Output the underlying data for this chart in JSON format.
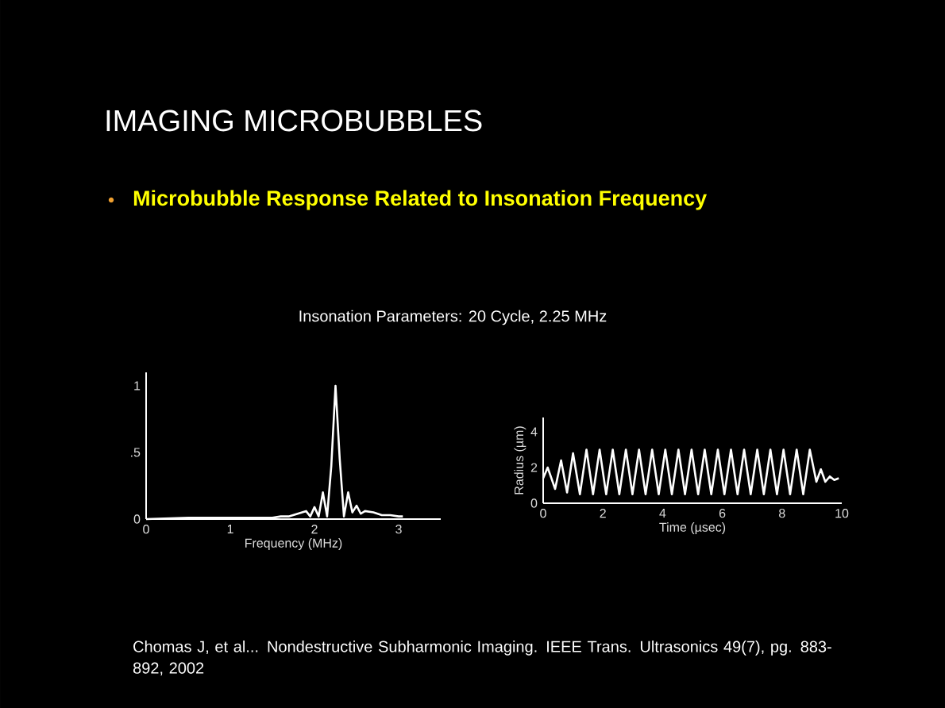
{
  "chart_data": [
    {
      "type": "line",
      "title": "IMAGING MICROBUBBLES",
      "subtitle": "Microbubble Response Related to Insonation Frequency",
      "annotations": [
        "Insonation Parameters: 20 Cycle, 2.25 MHz",
        "Chomas J, et al... Nondestructive Subharmonic Imaging. IEEE Trans. Ultrasonics 49(7), pg. 883-892, 2002"
      ],
      "xlabel": "Frequency (MHz)",
      "xlim": [
        0,
        3.5
      ],
      "ylim": [
        0,
        1.1
      ],
      "xticks": [
        0,
        1,
        2,
        3
      ],
      "yticks": [
        0,
        {
          "value": 0.5,
          "label": ".5"
        },
        1
      ],
      "x": [
        0,
        0.5,
        1,
        1.5,
        1.6,
        1.7,
        1.8,
        1.9,
        1.95,
        2.0,
        2.05,
        2.1,
        2.15,
        2.2,
        2.25,
        2.3,
        2.35,
        2.4,
        2.45,
        2.5,
        2.55,
        2.6,
        2.7,
        2.8,
        2.9,
        3.0,
        3.05
      ],
      "series": [
        {
          "color": "#ffffff",
          "values": [
            0,
            0.01,
            0.01,
            0.01,
            0.02,
            0.02,
            0.04,
            0.06,
            0.02,
            0.09,
            0.02,
            0.2,
            0.02,
            0.4,
            1.0,
            0.45,
            0.02,
            0.2,
            0.05,
            0.1,
            0.04,
            0.06,
            0.05,
            0.03,
            0.03,
            0.02,
            0.02
          ]
        }
      ]
    },
    {
      "type": "line",
      "xlabel": "Time (µsec)",
      "ylabel": "Radius (µm)",
      "xlim": [
        0,
        10
      ],
      "ylim": [
        0,
        4.8
      ],
      "xticks": [
        0,
        2,
        4,
        6,
        8,
        10
      ],
      "yticks": [
        0,
        2,
        4
      ],
      "x": [
        0,
        0.15,
        0.4,
        0.6,
        0.8,
        1.0,
        1.23,
        1.45,
        1.67,
        1.89,
        2.11,
        2.33,
        2.55,
        2.77,
        2.99,
        3.21,
        3.43,
        3.65,
        3.87,
        4.09,
        4.31,
        4.53,
        4.75,
        4.97,
        5.19,
        5.41,
        5.63,
        5.85,
        6.07,
        6.29,
        6.51,
        6.73,
        6.95,
        7.17,
        7.39,
        7.61,
        7.83,
        8.05,
        8.27,
        8.49,
        8.71,
        8.93,
        9.15,
        9.3,
        9.45,
        9.6,
        9.75,
        9.9
      ],
      "series": [
        {
          "color": "#ffffff",
          "values": [
            1.4,
            2.0,
            0.8,
            2.4,
            0.6,
            2.8,
            0.5,
            3.0,
            0.5,
            3.0,
            0.5,
            3.0,
            0.5,
            3.0,
            0.5,
            3.0,
            0.5,
            3.0,
            0.5,
            3.0,
            0.5,
            3.0,
            0.5,
            3.0,
            0.5,
            3.0,
            0.5,
            3.0,
            0.5,
            3.0,
            0.5,
            3.0,
            0.5,
            3.0,
            0.5,
            3.0,
            0.5,
            3.0,
            0.5,
            3.0,
            0.5,
            3.0,
            1.2,
            1.9,
            1.2,
            1.5,
            1.3,
            1.4
          ]
        }
      ]
    }
  ]
}
